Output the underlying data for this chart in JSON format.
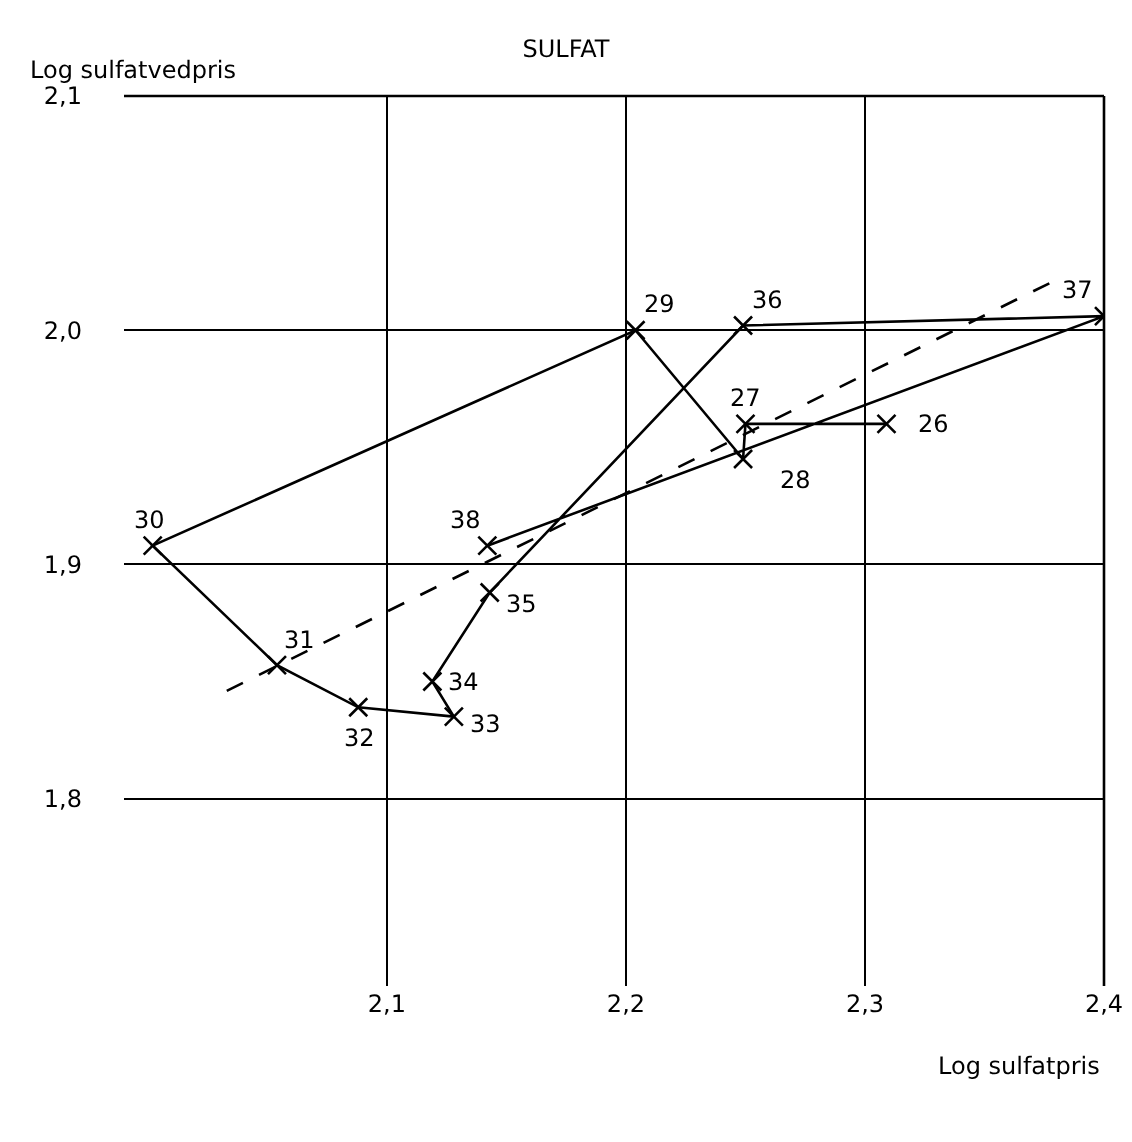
{
  "chart_data": {
    "type": "line",
    "title": "SULFAT",
    "xlabel": "Log sulfatpris",
    "ylabel": "Log sulfatvedpris",
    "xlim": [
      1.99,
      2.4
    ],
    "ylim": [
      1.72,
      2.1
    ],
    "xticks": [
      {
        "value": 2.1,
        "label": "2,1"
      },
      {
        "value": 2.2,
        "label": "2,2"
      },
      {
        "value": 2.3,
        "label": "2,3"
      },
      {
        "value": 2.4,
        "label": "2,4"
      }
    ],
    "yticks": [
      {
        "value": 1.8,
        "label": "1,8"
      },
      {
        "value": 1.9,
        "label": "1,9"
      },
      {
        "value": 2.0,
        "label": "2,0"
      },
      {
        "value": 2.1,
        "label": "2,1"
      }
    ],
    "grid": true,
    "marker": "cross",
    "line_style": "solid",
    "series": [
      {
        "color": "#000000",
        "x": [
          2.309,
          2.25,
          2.249,
          2.204,
          2.002,
          2.054,
          2.088,
          2.128,
          2.119,
          2.143,
          2.249,
          2.4,
          2.142
        ],
        "values": [
          1.96,
          1.96,
          1.945,
          2.0,
          1.908,
          1.857,
          1.839,
          1.835,
          1.85,
          1.888,
          2.002,
          2.006,
          1.908
        ]
      },
      {
        "color": "#000000",
        "x": [
          2.033,
          2.383
        ],
        "values": [
          1.846,
          2.023
        ],
        "line_style": "dashed",
        "marker": "none"
      }
    ],
    "annotations": [
      {
        "text": "26",
        "x": 2.309,
        "y": 1.96
      },
      {
        "text": "27",
        "x": 2.25,
        "y": 1.96
      },
      {
        "text": "28",
        "x": 2.249,
        "y": 1.945
      },
      {
        "text": "29",
        "x": 2.204,
        "y": 2.0
      },
      {
        "text": "30",
        "x": 2.002,
        "y": 1.908
      },
      {
        "text": "31",
        "x": 2.054,
        "y": 1.857
      },
      {
        "text": "32",
        "x": 2.088,
        "y": 1.839
      },
      {
        "text": "33",
        "x": 2.128,
        "y": 1.835
      },
      {
        "text": "34",
        "x": 2.119,
        "y": 1.85
      },
      {
        "text": "35",
        "x": 2.143,
        "y": 1.888
      },
      {
        "text": "36",
        "x": 2.249,
        "y": 2.002
      },
      {
        "text": "37",
        "x": 2.4,
        "y": 2.006
      },
      {
        "text": "38",
        "x": 2.142,
        "y": 1.908
      }
    ]
  }
}
